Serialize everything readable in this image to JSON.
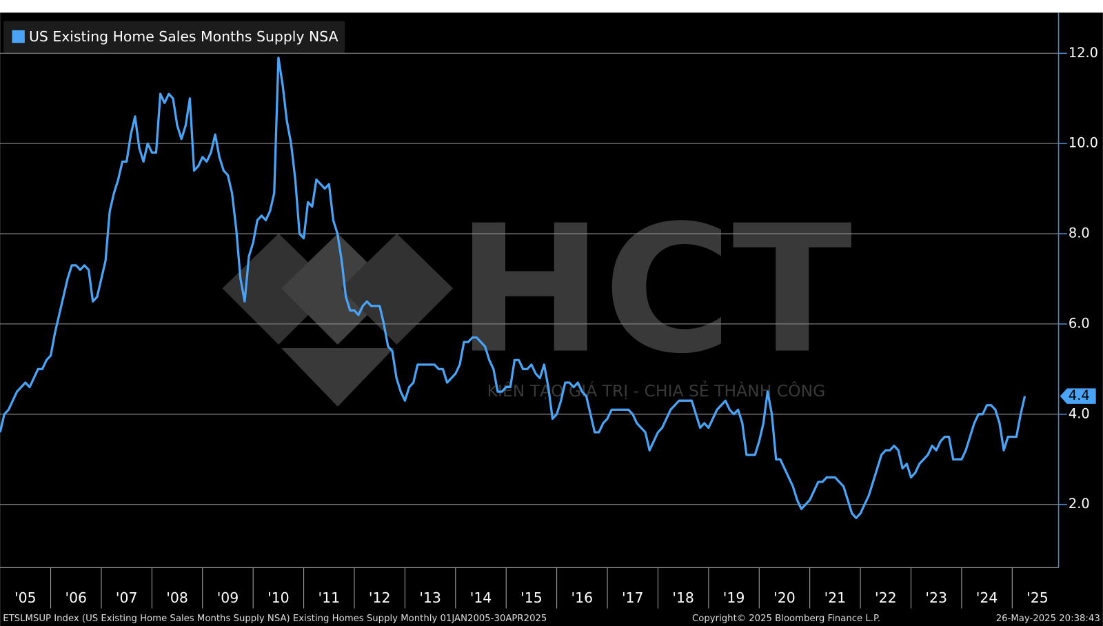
{
  "chart_data": {
    "type": "line",
    "legend": "top-left",
    "grid": true,
    "x": [
      "2005-01",
      "2005-02",
      "2005-03",
      "2005-04",
      "2005-05",
      "2005-06",
      "2005-07",
      "2005-08",
      "2005-09",
      "2005-10",
      "2005-11",
      "2005-12",
      "2006-01",
      "2006-02",
      "2006-03",
      "2006-04",
      "2006-05",
      "2006-06",
      "2006-07",
      "2006-08",
      "2006-09",
      "2006-10",
      "2006-11",
      "2006-12",
      "2007-01",
      "2007-02",
      "2007-03",
      "2007-04",
      "2007-05",
      "2007-06",
      "2007-07",
      "2007-08",
      "2007-09",
      "2007-10",
      "2007-11",
      "2007-12",
      "2008-01",
      "2008-02",
      "2008-03",
      "2008-04",
      "2008-05",
      "2008-06",
      "2008-07",
      "2008-08",
      "2008-09",
      "2008-10",
      "2008-11",
      "2008-12",
      "2009-01",
      "2009-02",
      "2009-03",
      "2009-04",
      "2009-05",
      "2009-06",
      "2009-07",
      "2009-08",
      "2009-09",
      "2009-10",
      "2009-11",
      "2009-12",
      "2010-01",
      "2010-02",
      "2010-03",
      "2010-04",
      "2010-05",
      "2010-06",
      "2010-07",
      "2010-08",
      "2010-09",
      "2010-10",
      "2010-11",
      "2010-12",
      "2011-01",
      "2011-02",
      "2011-03",
      "2011-04",
      "2011-05",
      "2011-06",
      "2011-07",
      "2011-08",
      "2011-09",
      "2011-10",
      "2011-11",
      "2011-12",
      "2012-01",
      "2012-02",
      "2012-03",
      "2012-04",
      "2012-05",
      "2012-06",
      "2012-07",
      "2012-08",
      "2012-09",
      "2012-10",
      "2012-11",
      "2012-12",
      "2013-01",
      "2013-02",
      "2013-03",
      "2013-04",
      "2013-05",
      "2013-06",
      "2013-07",
      "2013-08",
      "2013-09",
      "2013-10",
      "2013-11",
      "2013-12",
      "2014-01",
      "2014-02",
      "2014-03",
      "2014-04",
      "2014-05",
      "2014-06",
      "2014-07",
      "2014-08",
      "2014-09",
      "2014-10",
      "2014-11",
      "2014-12",
      "2015-01",
      "2015-02",
      "2015-03",
      "2015-04",
      "2015-05",
      "2015-06",
      "2015-07",
      "2015-08",
      "2015-09",
      "2015-10",
      "2015-11",
      "2015-12",
      "2016-01",
      "2016-02",
      "2016-03",
      "2016-04",
      "2016-05",
      "2016-06",
      "2016-07",
      "2016-08",
      "2016-09",
      "2016-10",
      "2016-11",
      "2016-12",
      "2017-01",
      "2017-02",
      "2017-03",
      "2017-04",
      "2017-05",
      "2017-06",
      "2017-07",
      "2017-08",
      "2017-09",
      "2017-10",
      "2017-11",
      "2017-12",
      "2018-01",
      "2018-02",
      "2018-03",
      "2018-04",
      "2018-05",
      "2018-06",
      "2018-07",
      "2018-08",
      "2018-09",
      "2018-10",
      "2018-11",
      "2018-12",
      "2019-01",
      "2019-02",
      "2019-03",
      "2019-04",
      "2019-05",
      "2019-06",
      "2019-07",
      "2019-08",
      "2019-09",
      "2019-10",
      "2019-11",
      "2019-12",
      "2020-01",
      "2020-02",
      "2020-03",
      "2020-04",
      "2020-05",
      "2020-06",
      "2020-07",
      "2020-08",
      "2020-09",
      "2020-10",
      "2020-11",
      "2020-12",
      "2021-01",
      "2021-02",
      "2021-03",
      "2021-04",
      "2021-05",
      "2021-06",
      "2021-07",
      "2021-08",
      "2021-09",
      "2021-10",
      "2021-11",
      "2021-12",
      "2022-01",
      "2022-02",
      "2022-03",
      "2022-04",
      "2022-05",
      "2022-06",
      "2022-07",
      "2022-08",
      "2022-09",
      "2022-10",
      "2022-11",
      "2022-12",
      "2023-01",
      "2023-02",
      "2023-03",
      "2023-04",
      "2023-05",
      "2023-06",
      "2023-07",
      "2023-08",
      "2023-09",
      "2023-10",
      "2023-11",
      "2023-12",
      "2024-01",
      "2024-02",
      "2024-03",
      "2024-04",
      "2024-05",
      "2024-06",
      "2024-07",
      "2024-08",
      "2024-09",
      "2024-10",
      "2024-11",
      "2024-12",
      "2025-01",
      "2025-02",
      "2025-03",
      "2025-04"
    ],
    "series": [
      {
        "name": "US Existing Home Sales Months Supply NSA",
        "color": "#4aa3f5",
        "values": [
          3.6,
          4.0,
          4.1,
          4.3,
          4.5,
          4.6,
          4.7,
          4.6,
          4.8,
          5.0,
          5.0,
          5.2,
          5.3,
          5.8,
          6.2,
          6.6,
          7.0,
          7.3,
          7.3,
          7.2,
          7.3,
          7.2,
          6.5,
          6.6,
          7.0,
          7.4,
          8.5,
          8.9,
          9.2,
          9.6,
          9.6,
          10.2,
          10.6,
          9.9,
          9.6,
          10.0,
          9.8,
          9.8,
          11.1,
          10.9,
          11.1,
          11.0,
          10.4,
          10.1,
          10.4,
          11.0,
          9.4,
          9.5,
          9.7,
          9.6,
          9.8,
          10.2,
          9.7,
          9.4,
          9.3,
          8.9,
          8.1,
          7.0,
          6.5,
          7.5,
          7.8,
          8.3,
          8.4,
          8.3,
          8.5,
          8.9,
          11.9,
          11.3,
          10.5,
          10.0,
          9.2,
          8.0,
          7.9,
          8.7,
          8.6,
          9.2,
          9.1,
          9.0,
          9.1,
          8.3,
          8.0,
          7.4,
          6.6,
          6.3,
          6.3,
          6.2,
          6.4,
          6.5,
          6.4,
          6.4,
          6.4,
          6.0,
          5.5,
          5.4,
          4.8,
          4.5,
          4.3,
          4.6,
          4.7,
          5.1,
          5.1,
          5.1,
          5.1,
          5.1,
          5.0,
          5.0,
          4.7,
          4.8,
          4.9,
          5.1,
          5.6,
          5.6,
          5.7,
          5.7,
          5.6,
          5.5,
          5.2,
          5.0,
          4.5,
          4.5,
          4.6,
          4.6,
          5.2,
          5.2,
          5.0,
          5.0,
          5.1,
          4.9,
          4.8,
          5.1,
          4.6,
          3.9,
          4.0,
          4.3,
          4.7,
          4.7,
          4.6,
          4.7,
          4.5,
          4.4,
          4.0,
          3.6,
          3.6,
          3.8,
          3.9,
          4.1,
          4.1,
          4.1,
          4.1,
          4.1,
          4.0,
          3.8,
          3.7,
          3.6,
          3.2,
          3.4,
          3.6,
          3.7,
          3.9,
          4.1,
          4.2,
          4.3,
          4.3,
          4.3,
          4.3,
          4.0,
          3.7,
          3.8,
          3.7,
          3.9,
          4.1,
          4.2,
          4.3,
          4.1,
          4.0,
          4.1,
          3.8,
          3.1,
          3.1,
          3.1,
          3.4,
          3.8,
          4.5,
          4.0,
          3.0,
          3.0,
          2.8,
          2.6,
          2.4,
          2.1,
          1.9,
          2.0,
          2.1,
          2.3,
          2.5,
          2.5,
          2.6,
          2.6,
          2.6,
          2.5,
          2.4,
          2.1,
          1.8,
          1.7,
          1.8,
          2.0,
          2.2,
          2.5,
          2.8,
          3.1,
          3.2,
          3.2,
          3.3,
          3.2,
          2.8,
          2.9,
          2.6,
          2.7,
          2.9,
          3.0,
          3.1,
          3.3,
          3.2,
          3.4,
          3.5,
          3.5,
          3.0,
          3.0,
          3.0,
          3.2,
          3.5,
          3.8,
          4.0,
          4.0,
          4.2,
          4.2,
          4.1,
          3.8,
          3.2,
          3.5,
          3.5,
          3.5,
          4.0,
          4.4
        ]
      }
    ],
    "xlim": [
      "2005-01",
      "2025-12"
    ],
    "xticks": [
      {
        "value": "2005",
        "label": "'05"
      },
      {
        "value": "2006",
        "label": "'06"
      },
      {
        "value": "2007",
        "label": "'07"
      },
      {
        "value": "2008",
        "label": "'08"
      },
      {
        "value": "2009",
        "label": "'09"
      },
      {
        "value": "2010",
        "label": "'10"
      },
      {
        "value": "2011",
        "label": "'11"
      },
      {
        "value": "2012",
        "label": "'12"
      },
      {
        "value": "2013",
        "label": "'13"
      },
      {
        "value": "2014",
        "label": "'14"
      },
      {
        "value": "2015",
        "label": "'15"
      },
      {
        "value": "2016",
        "label": "'16"
      },
      {
        "value": "2017",
        "label": "'17"
      },
      {
        "value": "2018",
        "label": "'18"
      },
      {
        "value": "2019",
        "label": "'19"
      },
      {
        "value": "2020",
        "label": "'20"
      },
      {
        "value": "2021",
        "label": "'21"
      },
      {
        "value": "2022",
        "label": "'22"
      },
      {
        "value": "2023",
        "label": "'23"
      },
      {
        "value": "2024",
        "label": "'24"
      },
      {
        "value": "2025",
        "label": "'25"
      }
    ],
    "ylim": [
      0.6,
      12.9
    ],
    "yticks": [
      {
        "value": 2,
        "label": "2.0"
      },
      {
        "value": 4,
        "label": "4.0"
      },
      {
        "value": 6,
        "label": "6.0"
      },
      {
        "value": 8,
        "label": "8.0"
      },
      {
        "value": 10,
        "label": "10.0"
      },
      {
        "value": 12,
        "label": "12.0"
      }
    ],
    "footer": {
      "source": "ETSLMSUP Index (US Existing Home Sales Months Supply NSA) Existing Homes Supply  Monthly 01JAN2005-30APR2025",
      "copyright": "Copyright© 2025 Bloomberg Finance L.P.",
      "timestamp": "26-May-2025 20:38:43"
    },
    "watermark": {
      "logo": "HCT",
      "tagline": "KIẾN TẠO GIÁ TRỊ - CHIA SẺ THÀNH CÔNG"
    }
  }
}
